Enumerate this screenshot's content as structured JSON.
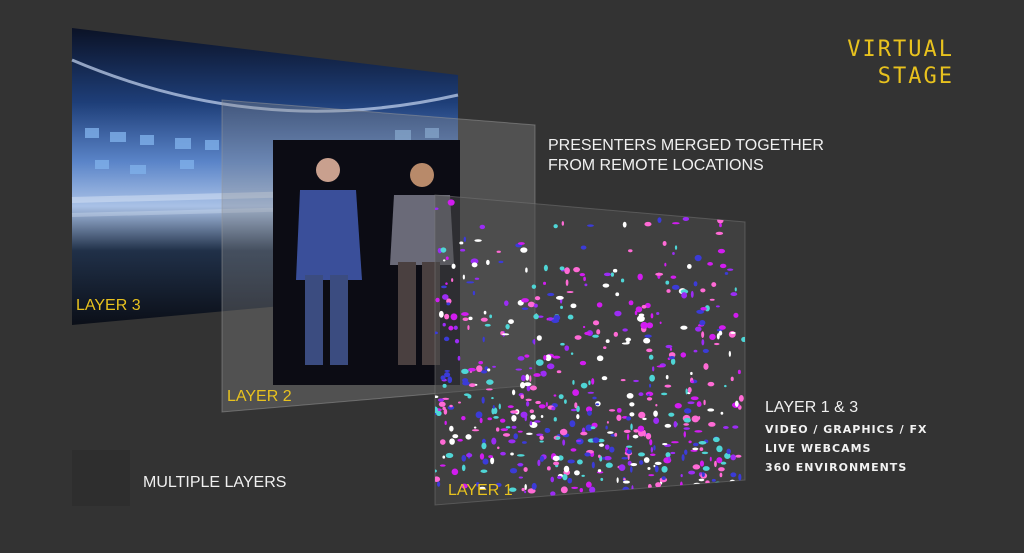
{
  "title": {
    "line1": "VIRTUAL",
    "line2": "STAGE"
  },
  "presenters_caption": {
    "line1": "PRESENTERS MERGED TOGETHER",
    "line2": "FROM REMOTE LOCATIONS"
  },
  "layers": {
    "layer3": "LAYER 3",
    "layer2": "LAYER 2",
    "layer1": "LAYER 1"
  },
  "legend_caption": "MULTIPLE LAYERS",
  "layer13_info": {
    "heading": "LAYER 1 & 3",
    "items": [
      "VIDEO / GRAPHICS / FX",
      "LIVE WEBCAMS",
      "360 ENVIRONMENTS"
    ]
  },
  "colors": {
    "background": "#333333",
    "accent": "#e8c21e",
    "confetti": [
      "#d21cf0",
      "#9b2cf5",
      "#3b3bd8",
      "#ffffff",
      "#4fd6d6",
      "#ff6ad5"
    ]
  }
}
